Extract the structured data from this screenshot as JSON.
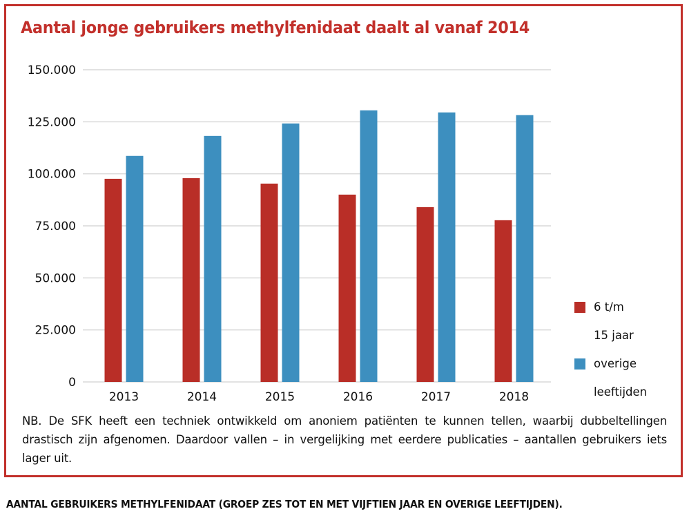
{
  "chart_data": {
    "type": "bar",
    "title": "Aantal jonge gebruikers methylfenidaat daalt al vanaf 2014",
    "xlabel": "",
    "ylabel": "",
    "categories": [
      "2013",
      "2014",
      "2015",
      "2016",
      "2017",
      "2018"
    ],
    "series": [
      {
        "name": "6 t/m 15 jaar",
        "color": "#b92e27",
        "values": [
          97600,
          97900,
          95300,
          90000,
          84000,
          77700
        ]
      },
      {
        "name": "overige leeftijden",
        "color": "#3d8fbf",
        "values": [
          108600,
          118200,
          124200,
          130500,
          129500,
          128200
        ]
      }
    ],
    "ylim": [
      0,
      150000
    ],
    "yticks": [
      0,
      25000,
      50000,
      75000,
      100000,
      125000,
      150000
    ],
    "ytick_labels": [
      "0",
      "25.000",
      "50.000",
      "75.000",
      "100.000",
      "125.000",
      "150.000"
    ],
    "grid": true,
    "legend_position": "right"
  },
  "legend": {
    "items": [
      {
        "line1": "6 t/m",
        "line2": "15 jaar",
        "color": "#b92e27"
      },
      {
        "line1": "overige",
        "line2": "leeftijden",
        "color": "#3d8fbf"
      }
    ]
  },
  "note": "NB. De SFK heeft een techniek ontwikkeld om anoniem patiënten te kunnen tellen, waarbij dubbeltellingen drastisch zijn afgenomen. Daardoor vallen – in vergelijking met eerdere publicaties – aantallen gebruikers iets lager uit.",
  "caption": "AANTAL GEBRUIKERS METHYLFENIDAAT (GROEP ZES TOT EN MET VIJFTIEN JAAR EN OVERIGE LEEFTIJDEN).",
  "colors": {
    "frame": "#c2302b",
    "title": "#c2302b",
    "grid": "#d9d9d9"
  }
}
